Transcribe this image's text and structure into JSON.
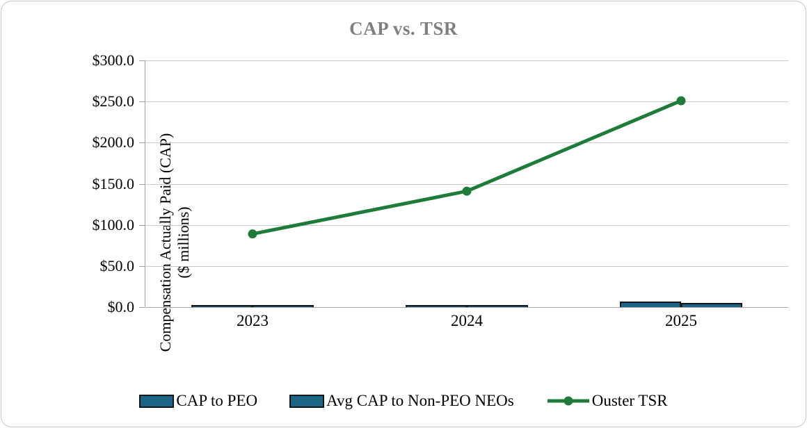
{
  "title": "CAP vs. TSR",
  "colors": {
    "bar_fill": "#1D6587",
    "bar_border": "#14171A",
    "line_green": "#1E7B39",
    "title_gray": "#7F7F7F",
    "axis_gray": "#9AA0A6",
    "gridline_gray": "#C9C9C9"
  },
  "chart_data": {
    "type": "combo_bar_line",
    "title": "CAP vs. TSR",
    "categories": [
      "2023",
      "2024",
      "2025"
    ],
    "series": [
      {
        "name": "CAP to PEO",
        "type": "bar",
        "values": [
          0.5,
          2.0,
          7.0
        ]
      },
      {
        "name": "Avg CAP to Non-PEO NEOs",
        "type": "bar",
        "values": [
          0.3,
          1.2,
          5.0
        ]
      },
      {
        "name": "Ouster TSR",
        "type": "line",
        "values": [
          89,
          141,
          251
        ]
      }
    ],
    "ylabel_line1": "Compensation Actually Paid (CAP)",
    "ylabel_line2": "($ millions)",
    "y_ticks": [
      "$300.0",
      "$250.0",
      "$200.0",
      "$150.0",
      "$100.0",
      "$50.0",
      "$0.0"
    ],
    "y_tick_values": [
      300,
      250,
      200,
      150,
      100,
      50,
      0
    ],
    "ylim": [
      0,
      300
    ],
    "grid": "horizontal",
    "legend_position": "bottom"
  }
}
